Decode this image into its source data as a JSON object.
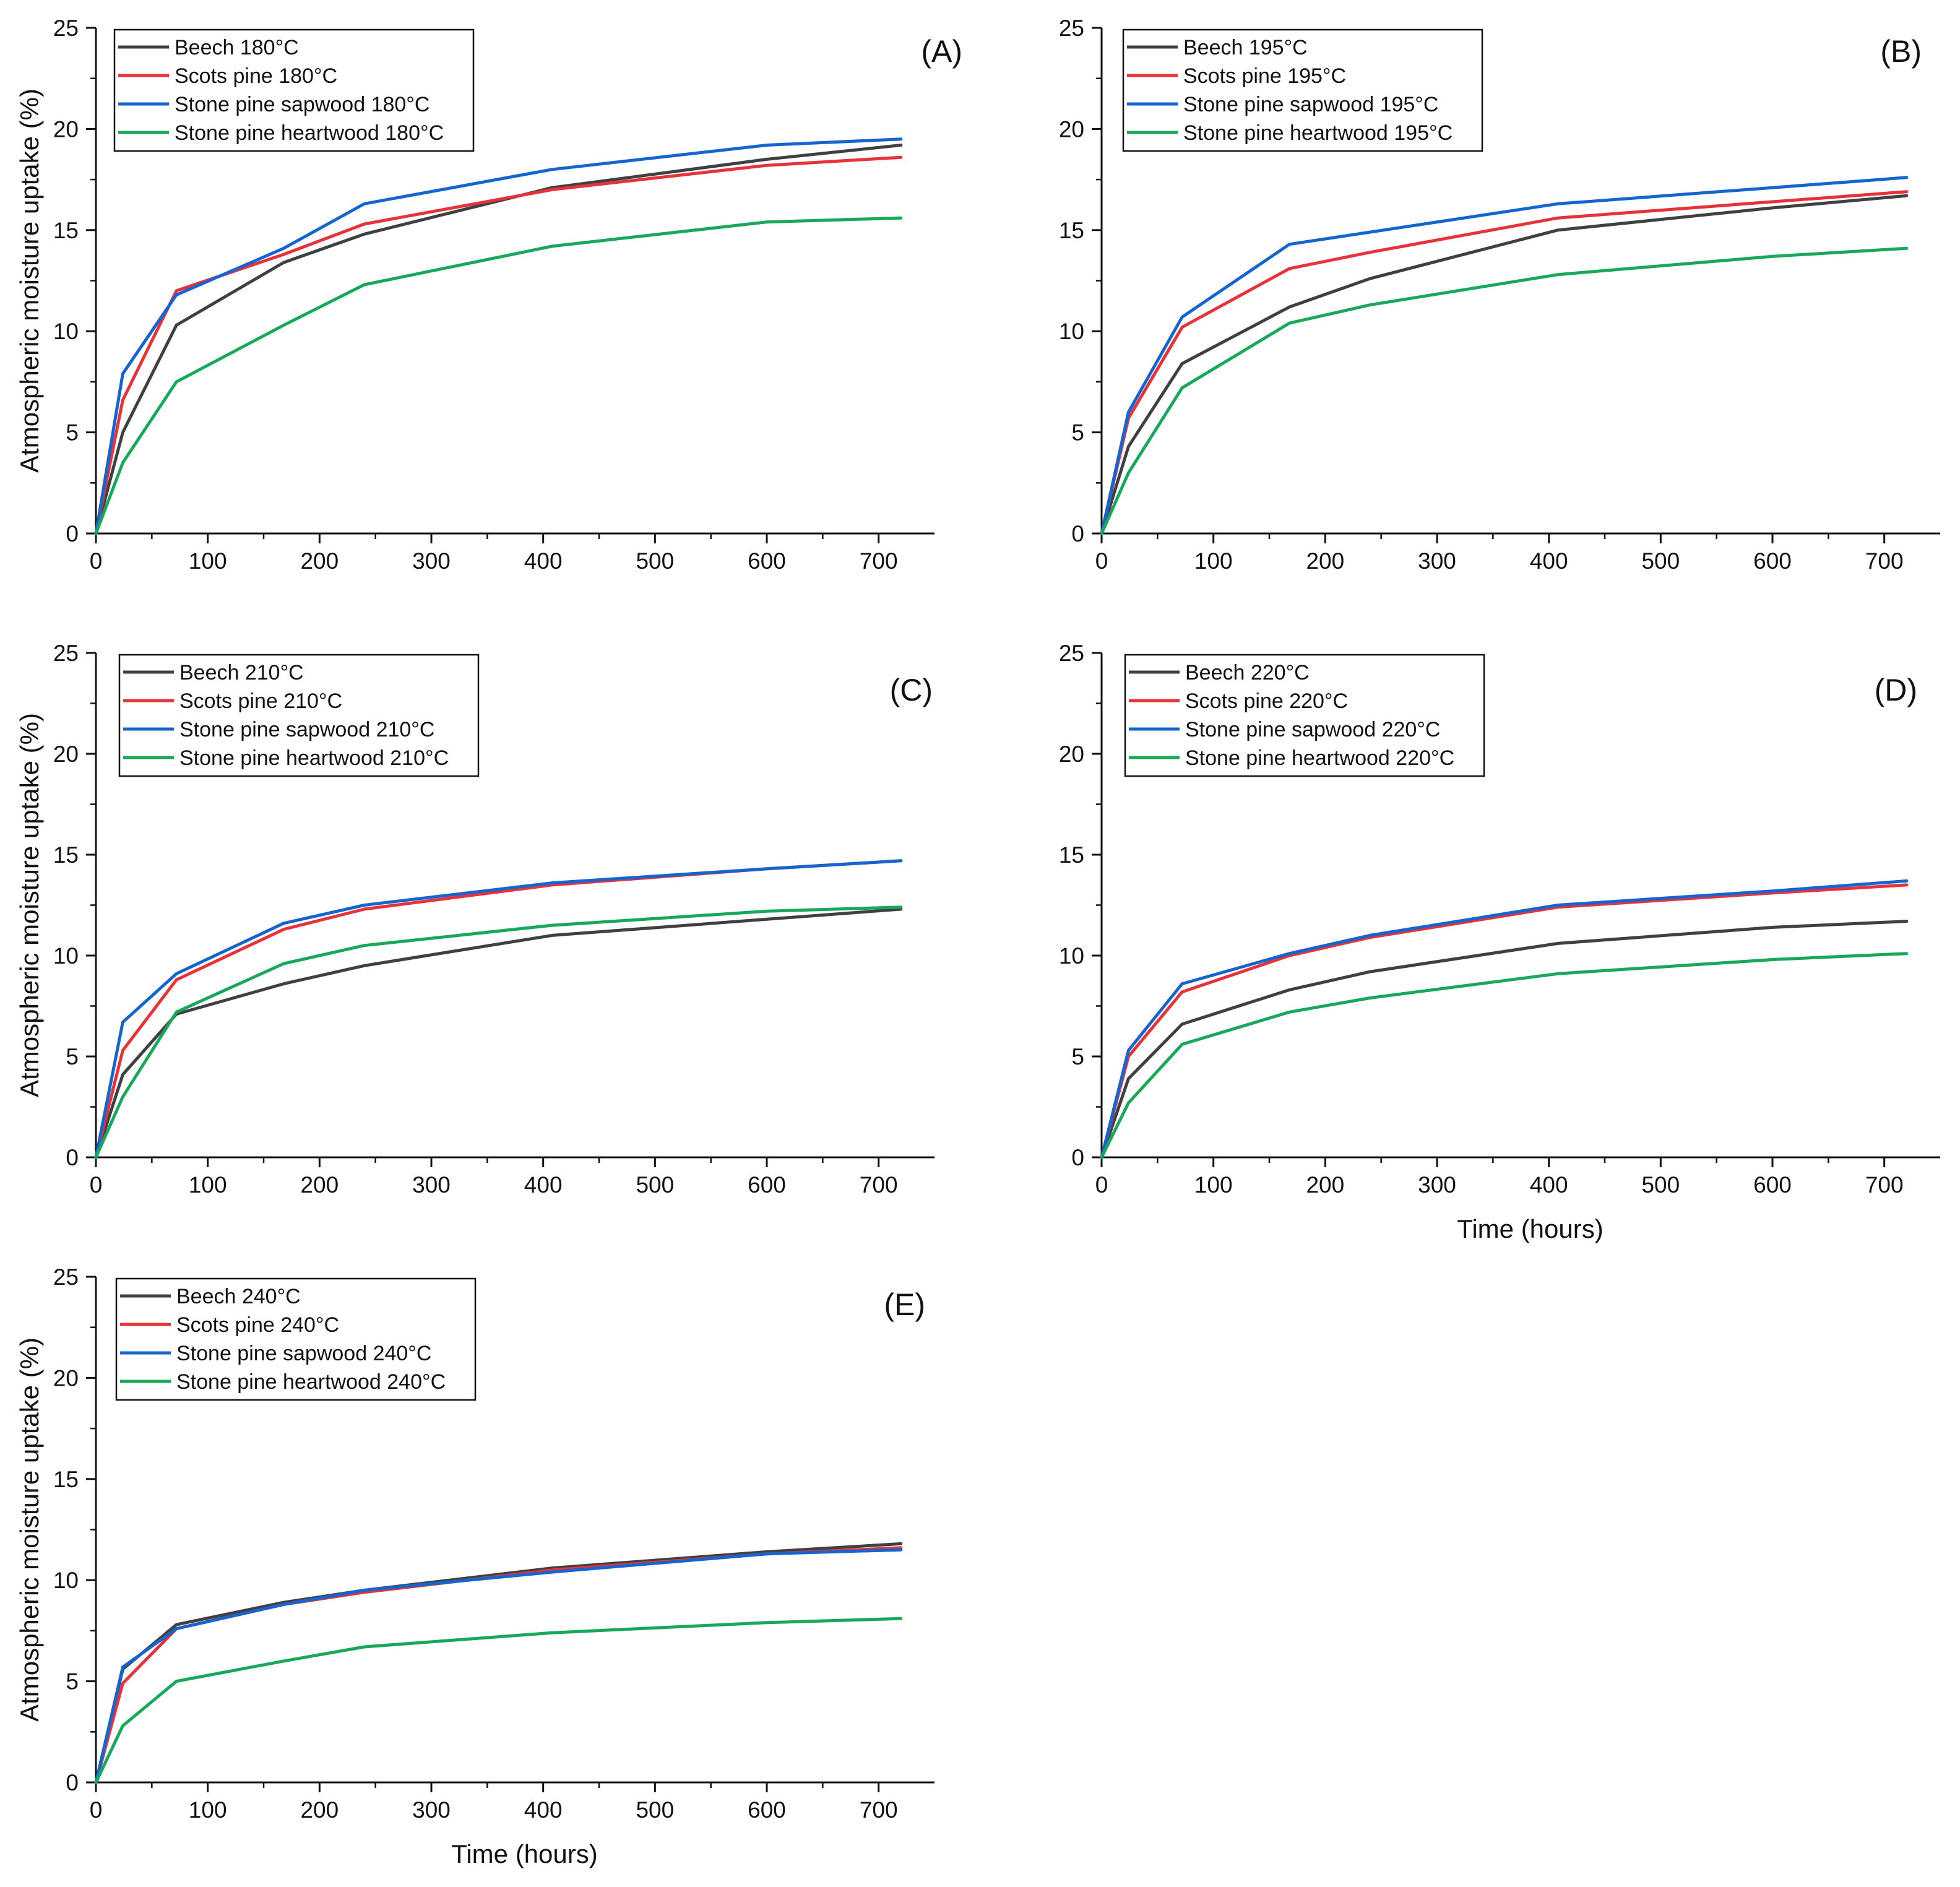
{
  "figure": {
    "x_axis_title": "Time (hours)",
    "y_axis_title": "Atmospheric moisture uptake (%)"
  },
  "colors": {
    "Beech": "#404040",
    "Scots pine": "#e8323a",
    "Stone pine sapwood": "#1565d0",
    "Stone pine heartwood": "#17a85a",
    "axis": "#111111"
  },
  "chart_data": [
    {
      "type": "line",
      "panel_label": "(A)",
      "title": "",
      "xlabel": "",
      "ylabel": "Atmospheric moisture uptake (%)",
      "xlim": [
        0,
        750
      ],
      "ylim": [
        0,
        25
      ],
      "x_ticks": [
        "0",
        "100",
        "200",
        "300",
        "400",
        "500",
        "600",
        "700"
      ],
      "y_ticks": [
        "0",
        "5",
        "10",
        "15",
        "20",
        "25"
      ],
      "x": [
        0,
        24,
        72,
        168,
        240,
        408,
        600,
        720
      ],
      "legend_position": "top-left",
      "series": [
        {
          "name": "Beech 180°C",
          "color_key": "Beech",
          "values": [
            0,
            5.0,
            10.3,
            13.4,
            14.8,
            17.1,
            18.5,
            19.2
          ]
        },
        {
          "name": "Scots pine 180°C",
          "color_key": "Scots pine",
          "values": [
            0,
            6.6,
            12.0,
            13.8,
            15.3,
            17.0,
            18.2,
            18.6
          ]
        },
        {
          "name": "Stone pine sapwood 180°C",
          "color_key": "Stone pine sapwood",
          "values": [
            0,
            7.9,
            11.8,
            14.1,
            16.3,
            18.0,
            19.2,
            19.5
          ]
        },
        {
          "name": "Stone pine heartwood 180°C",
          "color_key": "Stone pine heartwood",
          "values": [
            0,
            3.5,
            7.5,
            10.3,
            12.3,
            14.2,
            15.4,
            15.6
          ]
        }
      ]
    },
    {
      "type": "line",
      "panel_label": "(B)",
      "title": "",
      "xlabel": "",
      "ylabel": "",
      "xlim": [
        0,
        750
      ],
      "ylim": [
        0,
        25
      ],
      "x_ticks": [
        "0",
        "100",
        "200",
        "300",
        "400",
        "500",
        "600",
        "700"
      ],
      "y_ticks": [
        "0",
        "5",
        "10",
        "15",
        "20",
        "25"
      ],
      "x": [
        0,
        24,
        72,
        168,
        240,
        408,
        600,
        720
      ],
      "legend_position": "top-left",
      "series": [
        {
          "name": "Beech 195°C",
          "color_key": "Beech",
          "values": [
            0,
            4.3,
            8.4,
            11.2,
            12.6,
            15.0,
            16.1,
            16.7
          ]
        },
        {
          "name": "Scots pine 195°C",
          "color_key": "Scots pine",
          "values": [
            0,
            5.7,
            10.2,
            13.1,
            13.9,
            15.6,
            16.4,
            16.9
          ]
        },
        {
          "name": "Stone pine sapwood 195°C",
          "color_key": "Stone pine sapwood",
          "values": [
            0,
            6.0,
            10.7,
            14.3,
            14.9,
            16.3,
            17.1,
            17.6
          ]
        },
        {
          "name": "Stone pine heartwood 195°C",
          "color_key": "Stone pine heartwood",
          "values": [
            0,
            3.0,
            7.2,
            10.4,
            11.3,
            12.8,
            13.7,
            14.1
          ]
        }
      ]
    },
    {
      "type": "line",
      "panel_label": "(C)",
      "title": "",
      "xlabel": "",
      "ylabel": "Atmospheric moisture uptake (%)",
      "xlim": [
        0,
        750
      ],
      "ylim": [
        0,
        25
      ],
      "x_ticks": [
        "0",
        "100",
        "200",
        "300",
        "400",
        "500",
        "600",
        "700"
      ],
      "y_ticks": [
        "0",
        "5",
        "10",
        "15",
        "20",
        "25"
      ],
      "x": [
        0,
        24,
        72,
        168,
        240,
        408,
        600,
        720
      ],
      "legend_position": "top-left",
      "series": [
        {
          "name": "Beech 210°C",
          "color_key": "Beech",
          "values": [
            0,
            4.1,
            7.1,
            8.6,
            9.5,
            11.0,
            11.8,
            12.3
          ]
        },
        {
          "name": "Scots pine 210°C",
          "color_key": "Scots pine",
          "values": [
            0,
            5.3,
            8.8,
            11.3,
            12.3,
            13.5,
            14.3,
            14.7
          ]
        },
        {
          "name": "Stone pine sapwood 210°C",
          "color_key": "Stone pine sapwood",
          "values": [
            0,
            6.7,
            9.1,
            11.6,
            12.5,
            13.6,
            14.3,
            14.7
          ]
        },
        {
          "name": "Stone pine heartwood 210°C",
          "color_key": "Stone pine heartwood",
          "values": [
            0,
            3.0,
            7.2,
            9.6,
            10.5,
            11.5,
            12.2,
            12.4
          ]
        }
      ]
    },
    {
      "type": "line",
      "panel_label": "(D)",
      "title": "",
      "xlabel": "Time (hours)",
      "ylabel": "",
      "xlim": [
        0,
        750
      ],
      "ylim": [
        0,
        25
      ],
      "x_ticks": [
        "0",
        "100",
        "200",
        "300",
        "400",
        "500",
        "600",
        "700"
      ],
      "y_ticks": [
        "0",
        "5",
        "10",
        "15",
        "20",
        "25"
      ],
      "x": [
        0,
        24,
        72,
        168,
        240,
        408,
        600,
        720
      ],
      "legend_position": "top-left",
      "series": [
        {
          "name": "Beech 220°C",
          "color_key": "Beech",
          "values": [
            0,
            3.9,
            6.6,
            8.3,
            9.2,
            10.6,
            11.4,
            11.7
          ]
        },
        {
          "name": "Scots pine 220°C",
          "color_key": "Scots pine",
          "values": [
            0,
            5.0,
            8.2,
            10.0,
            10.9,
            12.4,
            13.1,
            13.5
          ]
        },
        {
          "name": "Stone pine sapwood 220°C",
          "color_key": "Stone pine sapwood",
          "values": [
            0,
            5.3,
            8.6,
            10.1,
            11.0,
            12.5,
            13.2,
            13.7
          ]
        },
        {
          "name": "Stone pine heartwood 220°C",
          "color_key": "Stone pine heartwood",
          "values": [
            0,
            2.7,
            5.6,
            7.2,
            7.9,
            9.1,
            9.8,
            10.1
          ]
        }
      ]
    },
    {
      "type": "line",
      "panel_label": "(E)",
      "title": "",
      "xlabel": "Time (hours)",
      "ylabel": "Atmospheric moisture uptake (%)",
      "xlim": [
        0,
        750
      ],
      "ylim": [
        0,
        25
      ],
      "x_ticks": [
        "0",
        "100",
        "200",
        "300",
        "400",
        "500",
        "600",
        "700"
      ],
      "y_ticks": [
        "0",
        "5",
        "10",
        "15",
        "20",
        "25"
      ],
      "x": [
        0,
        24,
        72,
        168,
        240,
        408,
        600,
        720
      ],
      "legend_position": "top-left",
      "series": [
        {
          "name": "Beech 240°C",
          "color_key": "Beech",
          "values": [
            0,
            5.6,
            7.8,
            8.9,
            9.5,
            10.6,
            11.4,
            11.8
          ]
        },
        {
          "name": "Scots pine 240°C",
          "color_key": "Scots pine",
          "values": [
            0,
            4.9,
            7.6,
            8.8,
            9.4,
            10.5,
            11.3,
            11.6
          ]
        },
        {
          "name": "Stone pine sapwood 240°C",
          "color_key": "Stone pine sapwood",
          "values": [
            0,
            5.7,
            7.6,
            8.8,
            9.5,
            10.4,
            11.3,
            11.5
          ]
        },
        {
          "name": "Stone pine heartwood 240°C",
          "color_key": "Stone pine heartwood",
          "values": [
            0,
            2.8,
            5.0,
            6.0,
            6.7,
            7.4,
            7.9,
            8.1
          ]
        }
      ]
    }
  ]
}
